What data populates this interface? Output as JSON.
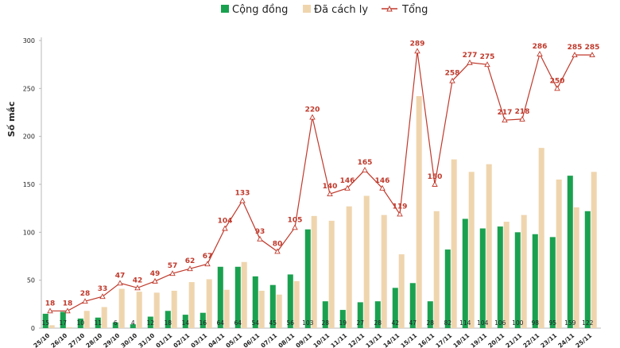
{
  "chart_data": {
    "type": "bar",
    "title": "",
    "xlabel": "",
    "ylabel": "Số mắc",
    "ylim": [
      0,
      300
    ],
    "yticks": [
      0,
      50,
      100,
      150,
      200,
      250,
      300
    ],
    "legend_position": "top",
    "colors": {
      "cong_dong": "#1aa150",
      "da_cach_ly": "#efd5ae",
      "tong": "#c0392b"
    },
    "categories": [
      "25/10",
      "26/10",
      "27/10",
      "28/10",
      "29/10",
      "30/10",
      "31/10",
      "01/11",
      "02/11",
      "03/11",
      "04/11",
      "05/11",
      "06/11",
      "07/11",
      "08/11",
      "09/11",
      "10/11",
      "11/11",
      "12/11",
      "13/11",
      "14/11",
      "15/11",
      "16/11",
      "17/11",
      "18/11",
      "19/11",
      "20/11",
      "21/11",
      "22/11",
      "23/11",
      "24/11",
      "25/11"
    ],
    "series": [
      {
        "name": "Cộng đồng",
        "type": "bar",
        "values": [
          15,
          17,
          10,
          11,
          6,
          4,
          12,
          18,
          14,
          16,
          64,
          64,
          54,
          45,
          56,
          103,
          28,
          19,
          27,
          28,
          42,
          47,
          28,
          82,
          114,
          104,
          106,
          100,
          98,
          95,
          159,
          122
        ]
      },
      {
        "name": "Đã cách ly",
        "type": "bar",
        "values": [
          3,
          1,
          18,
          22,
          41,
          38,
          37,
          39,
          48,
          51,
          40,
          69,
          39,
          35,
          49,
          117,
          112,
          127,
          138,
          118,
          77,
          242,
          122,
          176,
          163,
          171,
          111,
          118,
          188,
          155,
          126,
          163
        ]
      },
      {
        "name": "Tổng",
        "type": "line",
        "values": [
          18,
          18,
          28,
          33,
          47,
          42,
          49,
          57,
          62,
          67,
          104,
          133,
          93,
          80,
          105,
          220,
          140,
          146,
          165,
          146,
          119,
          289,
          150,
          258,
          277,
          275,
          217,
          218,
          286,
          250,
          285,
          285
        ]
      }
    ]
  }
}
